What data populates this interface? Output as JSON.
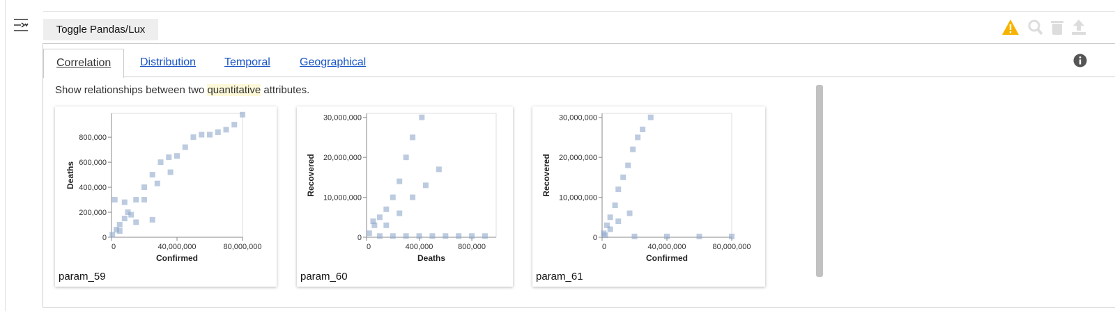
{
  "toolbar": {
    "toggle_button": "Toggle Pandas/Lux"
  },
  "tabs": [
    "Correlation",
    "Distribution",
    "Temporal",
    "Geographical"
  ],
  "active_tab": 0,
  "description": [
    "Show relationships between two ",
    "quantitative",
    " attributes."
  ],
  "charts": [
    {
      "type": "scatter",
      "name": "param_59",
      "x_label": "Confirmed",
      "y_label": "Deaths",
      "color": "#8fa8cc",
      "xlim": [
        0,
        80000000
      ],
      "ylim": [
        0,
        990000
      ],
      "xticks": [
        0,
        {
          "value": 40000000,
          "label": "40,000,000"
        },
        {
          "value": 80000000,
          "label": "80,000,000"
        }
      ],
      "yticks": [
        0,
        {
          "value": 200000,
          "label": "200,000"
        },
        {
          "value": 400000,
          "label": "400,000"
        },
        {
          "value": 600000,
          "label": "600,000"
        },
        {
          "value": 800000,
          "label": "800,000"
        }
      ],
      "x": [
        500000,
        3000000,
        5000000,
        8000000,
        10000000,
        15000000,
        20000000,
        25000000,
        30000000,
        35000000,
        40000000,
        45000000,
        50000000,
        55000000,
        60000000,
        65000000,
        70000000,
        75000000,
        80000000,
        12000000,
        20000000,
        28000000,
        36000000,
        5000000,
        15000000,
        25000000,
        2000000,
        8000000
      ],
      "y": [
        20000,
        60000,
        100000,
        150000,
        200000,
        300000,
        400000,
        500000,
        600000,
        640000,
        650000,
        720000,
        800000,
        820000,
        820000,
        840000,
        860000,
        900000,
        980000,
        180000,
        300000,
        430000,
        520000,
        50000,
        120000,
        140000,
        300000,
        280000
      ]
    },
    {
      "type": "scatter",
      "name": "param_60",
      "x_label": "Deaths",
      "y_label": "Recovered",
      "color": "#8fa8cc",
      "xlim": [
        0,
        985000
      ],
      "ylim": [
        0,
        31000000
      ],
      "xticks": [
        0,
        {
          "value": 400000,
          "label": "400,000"
        },
        {
          "value": 800000,
          "label": "800,000"
        }
      ],
      "yticks": [
        0,
        {
          "value": 10000000,
          "label": "10,000,000"
        },
        {
          "value": 20000000,
          "label": "20,000,000"
        },
        {
          "value": 30000000,
          "label": "30,000,000"
        }
      ],
      "x": [
        20000,
        60000,
        100000,
        150000,
        200000,
        250000,
        300000,
        350000,
        420000,
        150000,
        250000,
        350000,
        450000,
        550000,
        100000,
        200000,
        300000,
        400000,
        500000,
        600000,
        700000,
        800000,
        900000,
        50000
      ],
      "y": [
        1000000,
        3000000,
        5000000,
        7000000,
        10000000,
        14000000,
        20000000,
        25000000,
        30000000,
        3000000,
        6000000,
        10000000,
        13000000,
        17000000,
        300000,
        300000,
        300000,
        300000,
        300000,
        300000,
        300000,
        300000,
        300000,
        4000000
      ]
    },
    {
      "type": "scatter",
      "name": "param_61",
      "x_label": "Confirmed",
      "y_label": "Recovered",
      "color": "#8fa8cc",
      "xlim": [
        0,
        80000000
      ],
      "ylim": [
        0,
        31000000
      ],
      "xticks": [
        0,
        {
          "value": 40000000,
          "label": "40,000,000"
        },
        {
          "value": 80000000,
          "label": "80,000,000"
        }
      ],
      "yticks": [
        0,
        {
          "value": 10000000,
          "label": "10,000,000"
        },
        {
          "value": 20000000,
          "label": "20,000,000"
        },
        {
          "value": 30000000,
          "label": "30,000,000"
        }
      ],
      "x": [
        1000000,
        3000000,
        5000000,
        8000000,
        10000000,
        13000000,
        16000000,
        19000000,
        22000000,
        25000000,
        30000000,
        5000000,
        10000000,
        17000000,
        20000000,
        40000000,
        60000000,
        80000000,
        2000000
      ],
      "y": [
        1000000,
        3000000,
        5000000,
        8000000,
        12000000,
        15000000,
        18000000,
        22000000,
        25000000,
        27000000,
        30000000,
        2000000,
        4000000,
        6000000,
        200000,
        200000,
        200000,
        200000,
        500000
      ]
    }
  ]
}
